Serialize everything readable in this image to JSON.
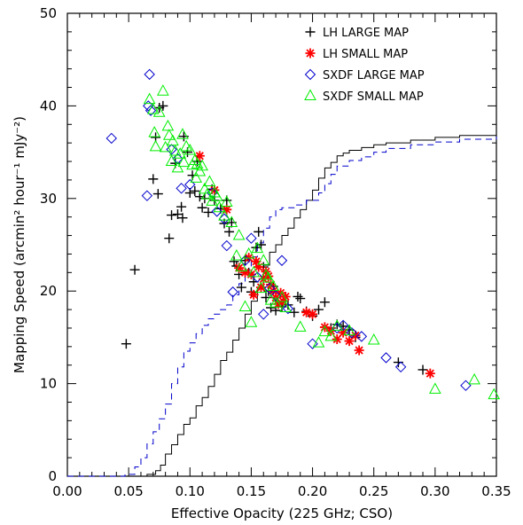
{
  "chart_data": {
    "type": "scatter",
    "xlabel": "Effective Opacity (225 GHz; CSO)",
    "ylabel": "Mapping Speed (arcmin² hour⁻¹ mJy⁻²)",
    "xlim": [
      0,
      0.35
    ],
    "ylim": [
      0,
      50
    ],
    "x_ticks": [
      "0.00",
      "0.05",
      "0.10",
      "0.15",
      "0.20",
      "0.25",
      "0.30",
      "0.35"
    ],
    "y_ticks": [
      "0",
      "10",
      "20",
      "30",
      "40",
      "50"
    ],
    "legend_position": "top-right",
    "grid": false,
    "series": [
      {
        "name": "LH LARGE MAP",
        "marker": "plus",
        "color": "#000000",
        "points": [
          [
            0.048,
            14.3
          ],
          [
            0.055,
            22.3
          ],
          [
            0.07,
            32.1
          ],
          [
            0.072,
            36.6
          ],
          [
            0.074,
            30.5
          ],
          [
            0.075,
            39.8
          ],
          [
            0.078,
            40.0
          ],
          [
            0.083,
            25.7
          ],
          [
            0.085,
            28.2
          ],
          [
            0.088,
            33.8
          ],
          [
            0.09,
            28.3
          ],
          [
            0.093,
            29.1
          ],
          [
            0.094,
            27.9
          ],
          [
            0.095,
            36.7
          ],
          [
            0.098,
            35.0
          ],
          [
            0.1,
            30.6
          ],
          [
            0.102,
            32.5
          ],
          [
            0.104,
            30.8
          ],
          [
            0.106,
            34.0
          ],
          [
            0.108,
            30.2
          ],
          [
            0.11,
            29.0
          ],
          [
            0.112,
            30.0
          ],
          [
            0.115,
            28.5
          ],
          [
            0.118,
            31.0
          ],
          [
            0.12,
            29.8
          ],
          [
            0.125,
            28.9
          ],
          [
            0.128,
            27.3
          ],
          [
            0.13,
            29.8
          ],
          [
            0.132,
            26.4
          ],
          [
            0.134,
            27.4
          ],
          [
            0.136,
            23.2
          ],
          [
            0.138,
            22.7
          ],
          [
            0.14,
            21.8
          ],
          [
            0.142,
            20.4
          ],
          [
            0.145,
            23.3
          ],
          [
            0.148,
            22.0
          ],
          [
            0.15,
            19.9
          ],
          [
            0.152,
            21.0
          ],
          [
            0.154,
            24.7
          ],
          [
            0.156,
            26.4
          ],
          [
            0.158,
            25.0
          ],
          [
            0.16,
            22.6
          ],
          [
            0.162,
            19.3
          ],
          [
            0.164,
            20.0
          ],
          [
            0.166,
            18.2
          ],
          [
            0.168,
            20.5
          ],
          [
            0.17,
            17.9
          ],
          [
            0.175,
            18.3
          ],
          [
            0.18,
            18.5
          ],
          [
            0.185,
            17.7
          ],
          [
            0.188,
            19.4
          ],
          [
            0.19,
            19.2
          ],
          [
            0.195,
            17.8
          ],
          [
            0.2,
            17.3
          ],
          [
            0.205,
            18.0
          ],
          [
            0.21,
            18.8
          ],
          [
            0.215,
            16.0
          ],
          [
            0.22,
            16.4
          ],
          [
            0.225,
            16.2
          ],
          [
            0.23,
            15.8
          ],
          [
            0.235,
            15.0
          ],
          [
            0.27,
            12.3
          ],
          [
            0.29,
            11.5
          ]
        ]
      },
      {
        "name": "LH SMALL MAP",
        "marker": "star",
        "color": "#ff0000",
        "points": [
          [
            0.108,
            34.6
          ],
          [
            0.12,
            30.9
          ],
          [
            0.13,
            28.8
          ],
          [
            0.14,
            22.5
          ],
          [
            0.145,
            22.0
          ],
          [
            0.148,
            23.6
          ],
          [
            0.15,
            21.8
          ],
          [
            0.152,
            19.6
          ],
          [
            0.154,
            23.2
          ],
          [
            0.156,
            22.6
          ],
          [
            0.158,
            20.4
          ],
          [
            0.16,
            21.3
          ],
          [
            0.162,
            22.1
          ],
          [
            0.164,
            21.6
          ],
          [
            0.166,
            20.7
          ],
          [
            0.168,
            20.0
          ],
          [
            0.17,
            19.3
          ],
          [
            0.172,
            18.6
          ],
          [
            0.174,
            19.8
          ],
          [
            0.176,
            18.9
          ],
          [
            0.178,
            19.4
          ],
          [
            0.195,
            17.7
          ],
          [
            0.2,
            17.5
          ],
          [
            0.21,
            16.1
          ],
          [
            0.215,
            15.7
          ],
          [
            0.22,
            14.8
          ],
          [
            0.225,
            15.5
          ],
          [
            0.23,
            14.6
          ],
          [
            0.235,
            15.2
          ],
          [
            0.238,
            13.6
          ],
          [
            0.296,
            11.1
          ]
        ]
      },
      {
        "name": "SXDF LARGE MAP",
        "marker": "diamond",
        "color": "#0000cc",
        "points": [
          [
            0.036,
            36.5
          ],
          [
            0.065,
            30.3
          ],
          [
            0.066,
            40.0
          ],
          [
            0.067,
            43.4
          ],
          [
            0.068,
            39.5
          ],
          [
            0.085,
            35.3
          ],
          [
            0.09,
            34.3
          ],
          [
            0.093,
            31.1
          ],
          [
            0.1,
            31.5
          ],
          [
            0.118,
            30.6
          ],
          [
            0.122,
            28.6
          ],
          [
            0.128,
            27.8
          ],
          [
            0.13,
            24.9
          ],
          [
            0.135,
            19.9
          ],
          [
            0.145,
            23.3
          ],
          [
            0.15,
            25.7
          ],
          [
            0.155,
            21.5
          ],
          [
            0.16,
            17.5
          ],
          [
            0.165,
            20.3
          ],
          [
            0.17,
            19.5
          ],
          [
            0.175,
            23.3
          ],
          [
            0.18,
            18.1
          ],
          [
            0.2,
            14.3
          ],
          [
            0.22,
            16.0
          ],
          [
            0.225,
            16.3
          ],
          [
            0.232,
            15.5
          ],
          [
            0.24,
            15.1
          ],
          [
            0.26,
            12.8
          ],
          [
            0.272,
            11.8
          ],
          [
            0.325,
            9.8
          ]
        ]
      },
      {
        "name": "SXDF SMALL MAP",
        "marker": "triangle",
        "color": "#00ee00",
        "points": [
          [
            0.067,
            40.7
          ],
          [
            0.07,
            39.6
          ],
          [
            0.071,
            37.1
          ],
          [
            0.072,
            35.6
          ],
          [
            0.075,
            39.3
          ],
          [
            0.078,
            41.6
          ],
          [
            0.08,
            35.5
          ],
          [
            0.082,
            37.8
          ],
          [
            0.083,
            36.8
          ],
          [
            0.085,
            34.0
          ],
          [
            0.086,
            36.2
          ],
          [
            0.088,
            35.1
          ],
          [
            0.09,
            33.3
          ],
          [
            0.092,
            34.8
          ],
          [
            0.094,
            36.9
          ],
          [
            0.095,
            33.9
          ],
          [
            0.097,
            35.6
          ],
          [
            0.1,
            35.2
          ],
          [
            0.102,
            33.6
          ],
          [
            0.104,
            34.1
          ],
          [
            0.105,
            32.2
          ],
          [
            0.106,
            33.7
          ],
          [
            0.108,
            32.9
          ],
          [
            0.11,
            33.5
          ],
          [
            0.112,
            31.0
          ],
          [
            0.114,
            30.4
          ],
          [
            0.116,
            31.8
          ],
          [
            0.118,
            29.7
          ],
          [
            0.12,
            30.6
          ],
          [
            0.122,
            30.2
          ],
          [
            0.124,
            29.0
          ],
          [
            0.128,
            28.1
          ],
          [
            0.13,
            29.6
          ],
          [
            0.134,
            27.4
          ],
          [
            0.138,
            23.8
          ],
          [
            0.14,
            26.0
          ],
          [
            0.142,
            22.6
          ],
          [
            0.145,
            18.3
          ],
          [
            0.148,
            24.0
          ],
          [
            0.15,
            16.6
          ],
          [
            0.152,
            22.0
          ],
          [
            0.155,
            24.6
          ],
          [
            0.158,
            20.3
          ],
          [
            0.16,
            23.3
          ],
          [
            0.162,
            21.7
          ],
          [
            0.164,
            21.4
          ],
          [
            0.166,
            19.0
          ],
          [
            0.168,
            20.5
          ],
          [
            0.17,
            18.7
          ],
          [
            0.175,
            19.3
          ],
          [
            0.178,
            18.2
          ],
          [
            0.19,
            16.1
          ],
          [
            0.205,
            14.4
          ],
          [
            0.21,
            15.6
          ],
          [
            0.215,
            15.1
          ],
          [
            0.22,
            16.2
          ],
          [
            0.23,
            15.7
          ],
          [
            0.25,
            14.7
          ],
          [
            0.3,
            9.4
          ],
          [
            0.332,
            10.4
          ],
          [
            0.348,
            8.8
          ]
        ]
      }
    ],
    "lines": [
      {
        "style": "solid",
        "color": "#000000",
        "points": [
          [
            0.0,
            0.0
          ],
          [
            0.055,
            0.0
          ],
          [
            0.065,
            0.2
          ],
          [
            0.072,
            0.6
          ],
          [
            0.076,
            1.2
          ],
          [
            0.08,
            2.4
          ],
          [
            0.085,
            3.4
          ],
          [
            0.09,
            4.5
          ],
          [
            0.095,
            5.6
          ],
          [
            0.1,
            6.3
          ],
          [
            0.105,
            7.6
          ],
          [
            0.11,
            8.5
          ],
          [
            0.115,
            9.7
          ],
          [
            0.12,
            11.0
          ],
          [
            0.125,
            12.5
          ],
          [
            0.13,
            13.4
          ],
          [
            0.135,
            14.7
          ],
          [
            0.14,
            16.0
          ],
          [
            0.145,
            17.5
          ],
          [
            0.15,
            18.9
          ],
          [
            0.155,
            20.3
          ],
          [
            0.16,
            22.8
          ],
          [
            0.165,
            24.2
          ],
          [
            0.17,
            25.0
          ],
          [
            0.175,
            26.0
          ],
          [
            0.18,
            26.8
          ],
          [
            0.185,
            27.9
          ],
          [
            0.19,
            28.8
          ],
          [
            0.195,
            29.8
          ],
          [
            0.2,
            30.9
          ],
          [
            0.205,
            32.2
          ],
          [
            0.21,
            33.3
          ],
          [
            0.215,
            33.9
          ],
          [
            0.22,
            34.6
          ],
          [
            0.225,
            34.9
          ],
          [
            0.23,
            35.2
          ],
          [
            0.24,
            35.5
          ],
          [
            0.25,
            35.8
          ],
          [
            0.26,
            36.0
          ],
          [
            0.28,
            36.3
          ],
          [
            0.3,
            36.6
          ],
          [
            0.32,
            36.8
          ],
          [
            0.35,
            37.0
          ]
        ]
      },
      {
        "style": "dashed",
        "color": "#0000cc",
        "points": [
          [
            0.0,
            0.0
          ],
          [
            0.047,
            0.2
          ],
          [
            0.055,
            1.0
          ],
          [
            0.06,
            2.0
          ],
          [
            0.065,
            3.5
          ],
          [
            0.07,
            4.8
          ],
          [
            0.075,
            6.2
          ],
          [
            0.08,
            7.8
          ],
          [
            0.085,
            10.0
          ],
          [
            0.09,
            11.8
          ],
          [
            0.095,
            13.5
          ],
          [
            0.1,
            14.4
          ],
          [
            0.105,
            15.4
          ],
          [
            0.11,
            16.3
          ],
          [
            0.115,
            17.0
          ],
          [
            0.12,
            17.5
          ],
          [
            0.125,
            18.0
          ],
          [
            0.13,
            18.5
          ],
          [
            0.135,
            19.6
          ],
          [
            0.14,
            20.8
          ],
          [
            0.145,
            22.3
          ],
          [
            0.15,
            23.7
          ],
          [
            0.155,
            25.2
          ],
          [
            0.16,
            26.8
          ],
          [
            0.165,
            28.0
          ],
          [
            0.17,
            28.8
          ],
          [
            0.175,
            29.0
          ],
          [
            0.185,
            29.3
          ],
          [
            0.195,
            29.8
          ],
          [
            0.205,
            30.6
          ],
          [
            0.21,
            31.6
          ],
          [
            0.215,
            32.6
          ],
          [
            0.22,
            33.5
          ],
          [
            0.23,
            34.1
          ],
          [
            0.24,
            34.5
          ],
          [
            0.25,
            35.0
          ],
          [
            0.26,
            35.4
          ],
          [
            0.28,
            35.8
          ],
          [
            0.3,
            36.1
          ],
          [
            0.32,
            36.4
          ],
          [
            0.35,
            36.7
          ]
        ]
      }
    ]
  }
}
